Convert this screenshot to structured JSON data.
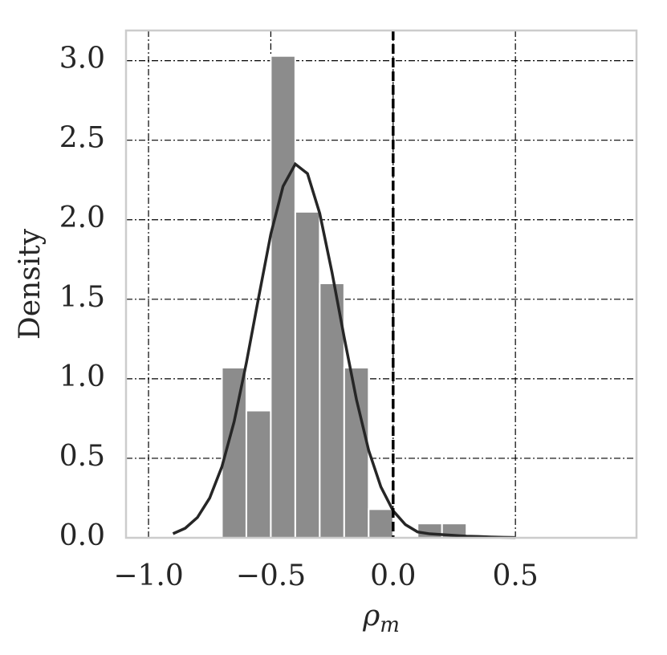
{
  "chart_data": {
    "type": "histogram",
    "bins": [
      -0.7,
      -0.6,
      -0.5,
      -0.4,
      -0.3,
      -0.2,
      -0.1,
      0.0,
      0.1,
      0.2,
      0.3
    ],
    "values": [
      1.07,
      0.8,
      3.03,
      2.05,
      1.6,
      1.07,
      0.18,
      0,
      0.09,
      0.09
    ],
    "color": "#8c8c8c",
    "kde": {
      "color": "#262626",
      "x": [
        -0.9,
        -0.85,
        -0.8,
        -0.75,
        -0.7,
        -0.65,
        -0.6,
        -0.55,
        -0.5,
        -0.45,
        -0.4,
        -0.35,
        -0.3,
        -0.25,
        -0.2,
        -0.15,
        -0.1,
        -0.05,
        0.0,
        0.05,
        0.1,
        0.15,
        0.2,
        0.25,
        0.3,
        0.35,
        0.4,
        0.45,
        0.5
      ],
      "values": [
        0.026,
        0.06,
        0.128,
        0.25,
        0.447,
        0.73,
        1.1,
        1.51,
        1.91,
        2.21,
        2.35,
        2.29,
        2.04,
        1.67,
        1.26,
        0.87,
        0.55,
        0.32,
        0.17,
        0.083,
        0.037,
        0.025,
        0.02,
        0.015,
        0.01,
        0.008,
        0.005,
        0.003,
        0.002
      ]
    },
    "vline": {
      "x": 0,
      "color": "#000000"
    },
    "xlabel": {
      "symbol": "ρ",
      "subscript": "m"
    },
    "ylabel": "Density",
    "xlim": [
      -1.092,
      0.995
    ],
    "ylim": [
      0,
      3.19
    ],
    "xticks": [
      {
        "value": -1.0,
        "label": "−1.0"
      },
      {
        "value": -0.5,
        "label": "−0.5"
      },
      {
        "value": 0.0,
        "label": "0.0"
      },
      0.5
    ],
    "yticks": [
      {
        "value": 0.0,
        "label": "0.0"
      },
      0.5,
      {
        "value": 1.0,
        "label": "1.0"
      },
      1.5,
      {
        "value": 2.0,
        "label": "2.0"
      },
      2.5,
      {
        "value": 3.0,
        "label": "3.0"
      }
    ],
    "grid": true
  }
}
